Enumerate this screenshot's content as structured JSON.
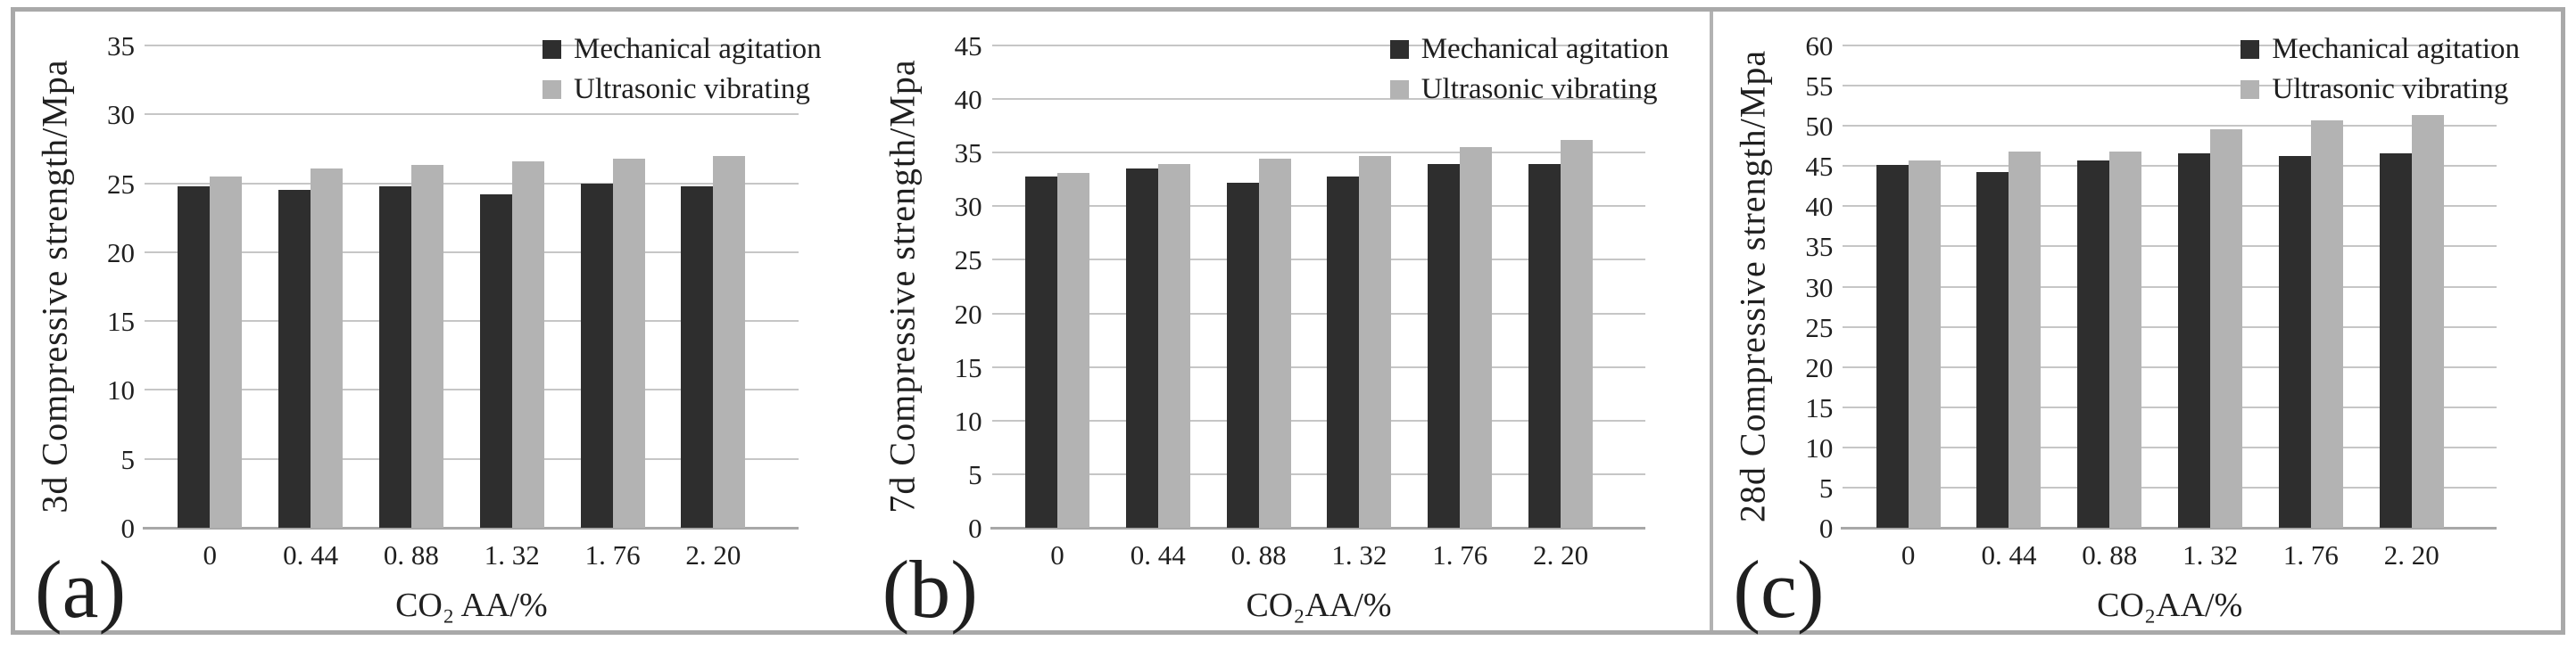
{
  "figure": {
    "background": "#ffffff",
    "frame_color": "#a9a9a9",
    "gridline_color": "#c6c6c6",
    "baseline_color": "#a8a8a8"
  },
  "legend": {
    "items": [
      {
        "label": "Mechanical agitation",
        "color": "#2e2e2e"
      },
      {
        "label": "Ultrasonic vibrating",
        "color": "#b3b3b3"
      }
    ]
  },
  "chart_data": [
    {
      "type": "bar",
      "panel_label": "(a)",
      "ylabel": "3d Compressive strength/Mpa",
      "xlabel": "CO₂ AA/%",
      "categories": [
        "0",
        "0. 44",
        "0. 88",
        "1. 32",
        "1. 76",
        "2. 20"
      ],
      "ylim": [
        0,
        35
      ],
      "ytick_step": 5,
      "yticks": [
        0,
        5,
        10,
        15,
        20,
        25,
        30,
        35
      ],
      "grid": true,
      "legend_position": "top-right",
      "series": [
        {
          "name": "Mechanical agitation",
          "color": "#2e2e2e",
          "values": [
            24.8,
            24.5,
            24.8,
            24.2,
            25.0,
            24.8
          ]
        },
        {
          "name": "Ultrasonic vibrating",
          "color": "#b3b3b3",
          "values": [
            25.5,
            26.1,
            26.3,
            26.6,
            26.8,
            27.0
          ]
        }
      ]
    },
    {
      "type": "bar",
      "panel_label": "(b)",
      "ylabel": "7d Compressive strength/Mpa",
      "xlabel": "CO₂AA/%",
      "categories": [
        "0",
        "0. 44",
        "0. 88",
        "1. 32",
        "1. 76",
        "2. 20"
      ],
      "ylim": [
        0,
        45
      ],
      "ytick_step": 5,
      "yticks": [
        0,
        5,
        10,
        15,
        20,
        25,
        30,
        35,
        40,
        45
      ],
      "grid": true,
      "legend_position": "top-right",
      "series": [
        {
          "name": "Mechanical agitation",
          "color": "#2e2e2e",
          "values": [
            32.8,
            33.5,
            32.2,
            32.8,
            33.9,
            33.9
          ]
        },
        {
          "name": "Ultrasonic vibrating",
          "color": "#b3b3b3",
          "values": [
            33.1,
            33.9,
            34.4,
            34.7,
            35.5,
            36.2
          ]
        }
      ]
    },
    {
      "type": "bar",
      "panel_label": "(c)",
      "ylabel": "28d Compressive strength/Mpa",
      "xlabel": "CO₂AA/%",
      "categories": [
        "0",
        "0. 44",
        "0. 88",
        "1. 32",
        "1. 76",
        "2. 20"
      ],
      "ylim": [
        0,
        60
      ],
      "ytick_step": 5,
      "yticks": [
        0,
        5,
        10,
        15,
        20,
        25,
        30,
        35,
        40,
        45,
        50,
        55,
        60
      ],
      "grid": true,
      "legend_position": "top-right",
      "series": [
        {
          "name": "Mechanical agitation",
          "color": "#2e2e2e",
          "values": [
            45.1,
            44.3,
            45.7,
            46.6,
            46.2,
            46.6
          ]
        },
        {
          "name": "Ultrasonic vibrating",
          "color": "#b3b3b3",
          "values": [
            45.7,
            46.8,
            46.8,
            49.6,
            50.7,
            51.3
          ]
        }
      ]
    }
  ]
}
